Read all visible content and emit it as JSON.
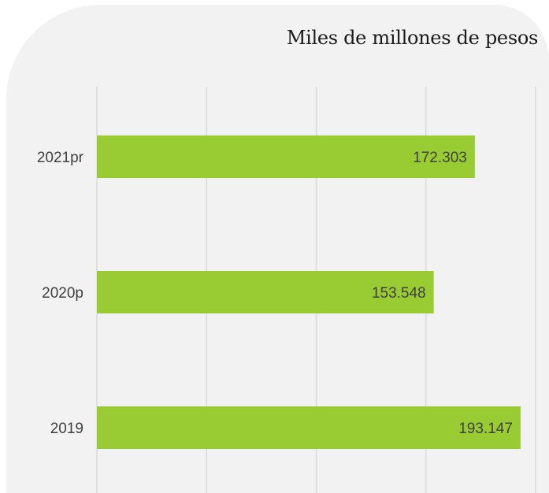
{
  "chart_data": {
    "type": "bar",
    "orientation": "horizontal",
    "unit_label": "Miles de millones de pesos",
    "categories": [
      "2021pr",
      "2020p",
      "2019"
    ],
    "values": [
      172303,
      153548,
      193147
    ],
    "value_labels": [
      "172.303",
      "153.548",
      "193.147"
    ],
    "xlim": [
      0,
      200000
    ],
    "grid": "vertical",
    "bar_color": "#99cc33",
    "background_color": "#f2f2f2",
    "grid_color": "#d9d9d9"
  }
}
